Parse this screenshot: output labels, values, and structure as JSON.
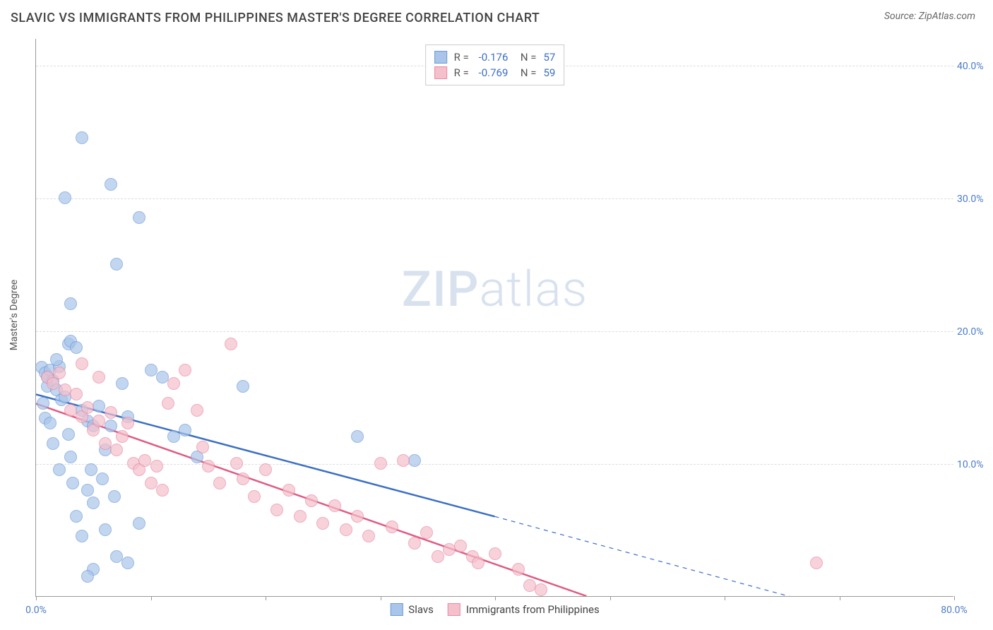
{
  "header": {
    "title": "SLAVIC VS IMMIGRANTS FROM PHILIPPINES MASTER'S DEGREE CORRELATION CHART",
    "source": "Source: ZipAtlas.com"
  },
  "watermark": {
    "zip": "ZIP",
    "atlas": "atlas"
  },
  "chart": {
    "type": "scatter",
    "y_axis_title": "Master's Degree",
    "background_color": "#ffffff",
    "grid_color": "#dddddd",
    "axis_color": "#999999",
    "tick_label_color": "#4a7bc8",
    "xlim": [
      0,
      80
    ],
    "ylim": [
      0,
      42
    ],
    "y_ticks": [
      {
        "value": 10,
        "label": "10.0%"
      },
      {
        "value": 20,
        "label": "20.0%"
      },
      {
        "value": 30,
        "label": "30.0%"
      },
      {
        "value": 40,
        "label": "40.0%"
      }
    ],
    "x_ticks": [
      {
        "value": 0,
        "label": "0.0%"
      },
      {
        "value": 10,
        "label": ""
      },
      {
        "value": 20,
        "label": ""
      },
      {
        "value": 30,
        "label": ""
      },
      {
        "value": 40,
        "label": ""
      },
      {
        "value": 50,
        "label": ""
      },
      {
        "value": 60,
        "label": ""
      },
      {
        "value": 70,
        "label": ""
      },
      {
        "value": 80,
        "label": "80.0%"
      }
    ],
    "marker_radius": 9,
    "marker_opacity": 0.7,
    "line_width_solid": 2.5,
    "line_width_dashed": 1.2,
    "series": [
      {
        "id": "slavs",
        "label": "Slavs",
        "fill": "#a9c5ea",
        "stroke": "#6f9bd6",
        "line_color": "#3b6fc4",
        "R": "-0.176",
        "N": "57",
        "regression": {
          "x1": 0,
          "y1": 15.2,
          "x2": 40,
          "y2": 6.0,
          "x_dash_end": 72,
          "y_dash_end": -1.5
        },
        "points": [
          [
            0.5,
            17.2
          ],
          [
            0.8,
            16.8
          ],
          [
            1.0,
            16.5
          ],
          [
            1.2,
            17.0
          ],
          [
            1.0,
            15.8
          ],
          [
            1.5,
            16.2
          ],
          [
            1.8,
            15.5
          ],
          [
            2.0,
            17.3
          ],
          [
            2.2,
            14.8
          ],
          [
            2.5,
            15.0
          ],
          [
            0.8,
            13.4
          ],
          [
            1.2,
            13.0
          ],
          [
            2.8,
            19.0
          ],
          [
            3.0,
            19.2
          ],
          [
            3.5,
            18.7
          ],
          [
            4.0,
            34.5
          ],
          [
            2.5,
            30.0
          ],
          [
            6.5,
            31.0
          ],
          [
            9.0,
            28.5
          ],
          [
            7.0,
            25.0
          ],
          [
            3.0,
            22.0
          ],
          [
            4.0,
            14.0
          ],
          [
            4.5,
            13.2
          ],
          [
            5.0,
            12.8
          ],
          [
            5.5,
            14.3
          ],
          [
            6.0,
            11.0
          ],
          [
            3.0,
            10.5
          ],
          [
            2.0,
            9.5
          ],
          [
            4.5,
            8.0
          ],
          [
            5.0,
            7.0
          ],
          [
            3.5,
            6.0
          ],
          [
            4.0,
            4.5
          ],
          [
            6.0,
            5.0
          ],
          [
            7.0,
            3.0
          ],
          [
            8.0,
            2.5
          ],
          [
            5.0,
            2.0
          ],
          [
            4.5,
            1.5
          ],
          [
            9.0,
            5.5
          ],
          [
            10.0,
            17.0
          ],
          [
            11.0,
            16.5
          ],
          [
            12.0,
            12.0
          ],
          [
            13.0,
            12.5
          ],
          [
            14.0,
            10.5
          ],
          [
            18.0,
            15.8
          ],
          [
            28.0,
            12.0
          ],
          [
            33.0,
            10.2
          ],
          [
            8.0,
            13.5
          ],
          [
            6.5,
            12.8
          ],
          [
            7.5,
            16.0
          ],
          [
            1.5,
            11.5
          ],
          [
            2.8,
            12.2
          ],
          [
            3.2,
            8.5
          ],
          [
            4.8,
            9.5
          ],
          [
            5.8,
            8.8
          ],
          [
            6.8,
            7.5
          ],
          [
            1.8,
            17.8
          ],
          [
            0.6,
            14.5
          ]
        ]
      },
      {
        "id": "philippines",
        "label": "Immigrants from Philippines",
        "fill": "#f4c0cc",
        "stroke": "#e88aa4",
        "line_color": "#e05a82",
        "R": "-0.769",
        "N": "59",
        "regression": {
          "x1": 0,
          "y1": 14.5,
          "x2": 48,
          "y2": 0.0,
          "x_dash_end": 48,
          "y_dash_end": 0.0
        },
        "points": [
          [
            1.0,
            16.5
          ],
          [
            1.5,
            16.0
          ],
          [
            2.0,
            16.8
          ],
          [
            2.5,
            15.5
          ],
          [
            3.0,
            14.0
          ],
          [
            3.5,
            15.2
          ],
          [
            4.0,
            13.5
          ],
          [
            4.5,
            14.2
          ],
          [
            5.0,
            12.5
          ],
          [
            5.5,
            13.2
          ],
          [
            6.0,
            11.5
          ],
          [
            6.5,
            13.8
          ],
          [
            7.0,
            11.0
          ],
          [
            7.5,
            12.0
          ],
          [
            8.0,
            13.0
          ],
          [
            8.5,
            10.0
          ],
          [
            9.0,
            9.5
          ],
          [
            9.5,
            10.2
          ],
          [
            10.0,
            8.5
          ],
          [
            10.5,
            9.8
          ],
          [
            11.0,
            8.0
          ],
          [
            12.0,
            16.0
          ],
          [
            13.0,
            17.0
          ],
          [
            14.0,
            14.0
          ],
          [
            15.0,
            9.8
          ],
          [
            16.0,
            8.5
          ],
          [
            17.0,
            19.0
          ],
          [
            18.0,
            8.8
          ],
          [
            19.0,
            7.5
          ],
          [
            20.0,
            9.5
          ],
          [
            21.0,
            6.5
          ],
          [
            22.0,
            8.0
          ],
          [
            23.0,
            6.0
          ],
          [
            24.0,
            7.2
          ],
          [
            25.0,
            5.5
          ],
          [
            26.0,
            6.8
          ],
          [
            27.0,
            5.0
          ],
          [
            28.0,
            6.0
          ],
          [
            29.0,
            4.5
          ],
          [
            30.0,
            10.0
          ],
          [
            31.0,
            5.2
          ],
          [
            32.0,
            10.2
          ],
          [
            33.0,
            4.0
          ],
          [
            34.0,
            4.8
          ],
          [
            35.0,
            3.0
          ],
          [
            36.0,
            3.5
          ],
          [
            37.0,
            3.8
          ],
          [
            38.0,
            3.0
          ],
          [
            38.5,
            2.5
          ],
          [
            40.0,
            3.2
          ],
          [
            42.0,
            2.0
          ],
          [
            43.0,
            0.8
          ],
          [
            68.0,
            2.5
          ],
          [
            4.0,
            17.5
          ],
          [
            5.5,
            16.5
          ],
          [
            11.5,
            14.5
          ],
          [
            14.5,
            11.2
          ],
          [
            17.5,
            10.0
          ],
          [
            44.0,
            0.5
          ]
        ]
      }
    ],
    "bottom_legend": {
      "items": [
        {
          "swatch_fill": "#a9c5ea",
          "swatch_stroke": "#6f9bd6",
          "label": "Slavs"
        },
        {
          "swatch_fill": "#f4c0cc",
          "swatch_stroke": "#e88aa4",
          "label": "Immigrants from Philippines"
        }
      ]
    }
  }
}
